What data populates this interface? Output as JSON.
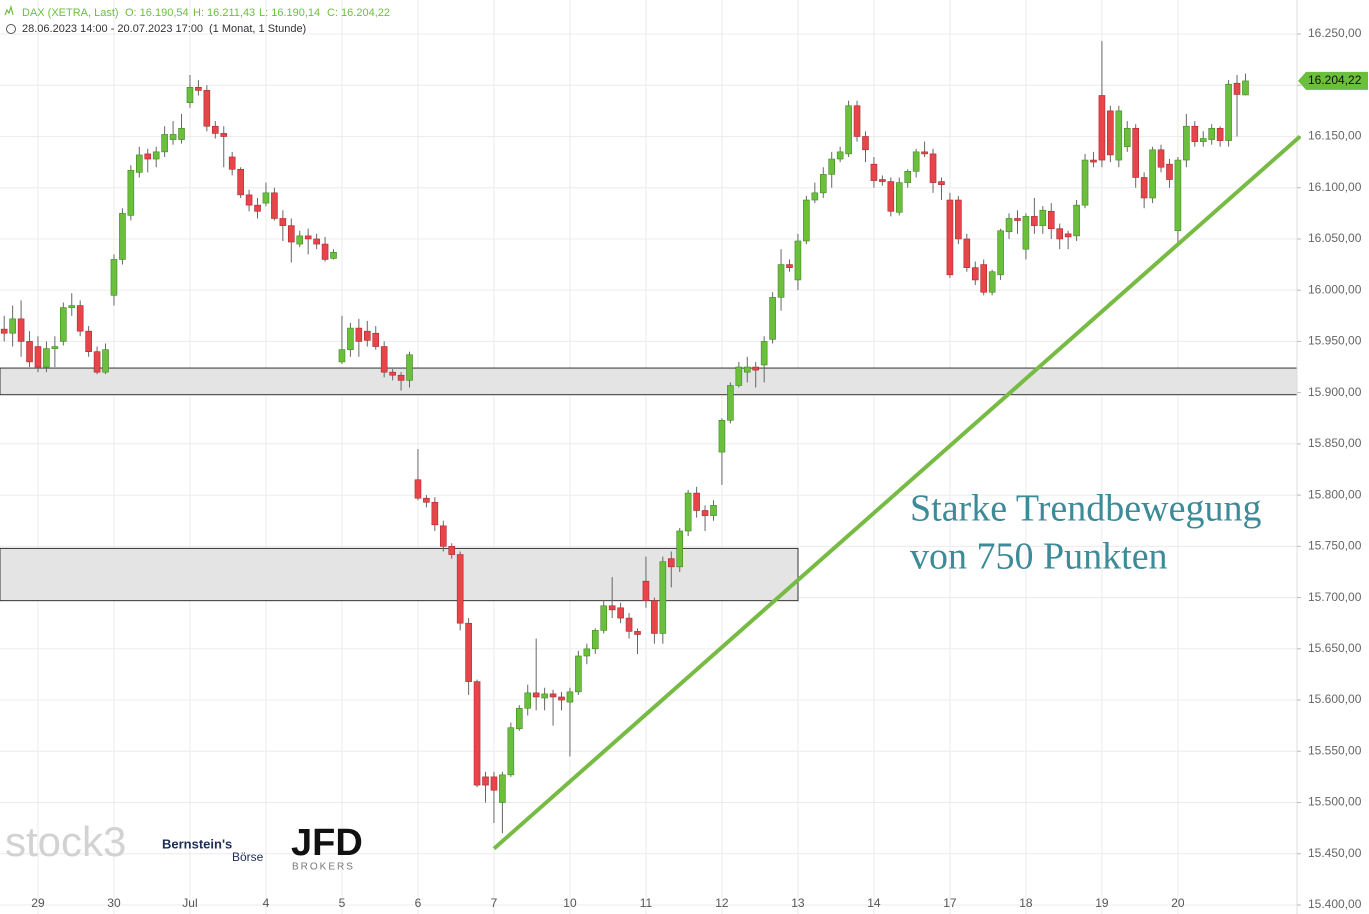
{
  "chart_data": {
    "type": "candlestick",
    "title": "DAX (XETRA, Last)",
    "quote": [
      "O: 16.190,54",
      "H: 16.211,43",
      "L: 16.190,14",
      "C: 16.204,22"
    ],
    "subtitle": "28.06.2023 14:00 - 20.07.2023 17:00",
    "period": "(1 Monat, 1 Stunde)",
    "annotation": [
      "Starke Trendbewegung",
      "von 750 Punkten"
    ],
    "logos": [
      "stock3",
      "Bernstein's",
      "Börse",
      "JFD",
      "BROKERS"
    ],
    "categories": [
      null,
      null,
      null,
      null,
      "29",
      null,
      null,
      null,
      null,
      null,
      null,
      null,
      null,
      "30",
      null,
      null,
      null,
      null,
      null,
      null,
      null,
      null,
      "Jul",
      null,
      null,
      null,
      null,
      null,
      null,
      null,
      null,
      "4",
      null,
      null,
      null,
      null,
      null,
      null,
      null,
      null,
      "5",
      null,
      null,
      null,
      null,
      null,
      null,
      null,
      null,
      "6",
      null,
      null,
      null,
      null,
      null,
      null,
      null,
      null,
      "7",
      null,
      null,
      null,
      null,
      null,
      null,
      null,
      null,
      "10",
      null,
      null,
      null,
      null,
      null,
      null,
      null,
      null,
      "11",
      null,
      null,
      null,
      null,
      null,
      null,
      null,
      null,
      "12",
      null,
      null,
      null,
      null,
      null,
      null,
      null,
      null,
      "13",
      null,
      null,
      null,
      null,
      null,
      null,
      null,
      null,
      "14",
      null,
      null,
      null,
      null,
      null,
      null,
      null,
      null,
      "17",
      null,
      null,
      null,
      null,
      null,
      null,
      null,
      null,
      "18",
      null,
      null,
      null,
      null,
      null,
      null,
      null,
      null,
      "19",
      null,
      null,
      null,
      null,
      null,
      null,
      null,
      null,
      "20",
      null,
      null,
      null,
      null,
      null,
      null,
      null,
      null
    ],
    "open": [
      15962,
      15958,
      15972,
      15950,
      15945,
      15925,
      15943,
      15950,
      15983,
      15985,
      15960,
      15940,
      15920,
      15995,
      16030,
      16073,
      16115,
      16133,
      16128,
      16135,
      16147,
      16147,
      16183,
      16198,
      16195,
      16160,
      16153,
      16130,
      16118,
      16093,
      16083,
      16085,
      16095,
      16070,
      16063,
      16045,
      16053,
      16050,
      16045,
      16031,
      15930,
      15942,
      15963,
      15960,
      15958,
      15945,
      15920,
      15917,
      15912,
      15815,
      15797,
      15793,
      15770,
      15750,
      15742,
      15675,
      15618,
      15525,
      15525,
      15500,
      15527,
      15572,
      15592,
      15607,
      15602,
      15606,
      15603,
      15598,
      15608,
      15643,
      15650,
      15668,
      15692,
      15690,
      15680,
      15667,
      15716,
      15697,
      15665,
      15738,
      15730,
      15765,
      15802,
      15785,
      15780,
      15842,
      15873,
      15907,
      15920,
      15925,
      15927,
      15952,
      15993,
      16025,
      16010,
      16048,
      16088,
      16095,
      16113,
      16128,
      16133,
      16180,
      16150,
      16123,
      16108,
      16106,
      16076,
      16105,
      16116,
      16135,
      16133,
      16106,
      16088,
      16088,
      16050,
      16022,
      16025,
      15998,
      16015,
      16057,
      16070,
      16040,
      16072,
      16063,
      16077,
      16060,
      16055,
      16053,
      16083,
      16127,
      16190,
      16175,
      16127,
      16140,
      16158,
      16110,
      16090,
      16137,
      16123,
      16058,
      16127,
      16160,
      16145,
      16147,
      16158,
      16146,
      16202,
      16190.54
    ],
    "high": [
      15975,
      15985,
      15990,
      15960,
      15955,
      15950,
      15955,
      15988,
      15997,
      15990,
      15965,
      15945,
      15948,
      16035,
      16080,
      16122,
      16140,
      16138,
      16140,
      16160,
      16165,
      16172,
      16210,
      16205,
      16200,
      16165,
      16160,
      16135,
      16120,
      16098,
      16090,
      16105,
      16100,
      16078,
      16070,
      16058,
      16060,
      16055,
      16052,
      16040,
      15975,
      15968,
      15972,
      15970,
      15965,
      15950,
      15923,
      15920,
      15940,
      15845,
      15800,
      15798,
      15775,
      15753,
      15745,
      15680,
      15620,
      15530,
      15530,
      15530,
      15578,
      15595,
      15615,
      15660,
      15612,
      15610,
      15608,
      15612,
      15648,
      15655,
      15670,
      15697,
      15720,
      15695,
      15685,
      15670,
      15740,
      15700,
      15740,
      15745,
      15768,
      15805,
      15808,
      15790,
      15795,
      15875,
      15910,
      15930,
      15935,
      15930,
      15955,
      15998,
      16040,
      16030,
      16055,
      16092,
      16105,
      16120,
      16135,
      16140,
      16185,
      16185,
      16155,
      16130,
      16112,
      16110,
      16110,
      16118,
      16138,
      16145,
      16138,
      16110,
      16095,
      16092,
      16055,
      16028,
      16030,
      16020,
      16060,
      16075,
      16078,
      16075,
      16090,
      16082,
      16085,
      16065,
      16058,
      16088,
      16133,
      16135,
      16243,
      16180,
      16180,
      16165,
      16162,
      16115,
      16140,
      16142,
      16128,
      16130,
      16172,
      16165,
      16155,
      16162,
      16160,
      16205,
      16210,
      16211.43
    ],
    "low": [
      15950,
      15945,
      15935,
      15925,
      15920,
      15920,
      15925,
      15946,
      15975,
      15955,
      15935,
      15918,
      15918,
      15985,
      16025,
      16068,
      16110,
      16115,
      16120,
      16130,
      16142,
      16143,
      16178,
      16190,
      16155,
      16148,
      16120,
      16112,
      16090,
      16077,
      16070,
      16082,
      16068,
      16048,
      16027,
      16042,
      16035,
      16040,
      16028,
      16030,
      15928,
      15935,
      15935,
      15945,
      15942,
      15915,
      15912,
      15902,
      15905,
      15795,
      15788,
      15765,
      15745,
      15738,
      15668,
      15605,
      15515,
      15500,
      15480,
      15470,
      15525,
      15570,
      15585,
      15590,
      15590,
      15575,
      15590,
      15545,
      15605,
      15635,
      15645,
      15665,
      15680,
      15675,
      15660,
      15645,
      15690,
      15655,
      15655,
      15710,
      15725,
      15760,
      15778,
      15765,
      15775,
      15810,
      15870,
      15905,
      15910,
      15905,
      15910,
      15948,
      15980,
      16018,
      16000,
      16045,
      16085,
      16090,
      16100,
      16125,
      16130,
      16145,
      16125,
      16100,
      16102,
      16072,
      16073,
      16100,
      16110,
      16130,
      16095,
      16088,
      16012,
      16045,
      16018,
      16005,
      15995,
      15995,
      16010,
      16050,
      16055,
      16030,
      16055,
      16055,
      16050,
      16040,
      16040,
      16048,
      16080,
      16120,
      16120,
      16125,
      16120,
      16135,
      16100,
      16080,
      16085,
      16115,
      16100,
      16045,
      16120,
      16140,
      16140,
      16142,
      16140,
      16140,
      16150,
      16190.14
    ],
    "close": [
      15958,
      15972,
      15950,
      15930,
      15925,
      15943,
      15945,
      15983,
      15985,
      15960,
      15940,
      15920,
      15942,
      16030,
      16075,
      16117,
      16132,
      16128,
      16135,
      16152,
      16152,
      16158,
      16198,
      16195,
      16160,
      16153,
      16150,
      16118,
      16093,
      16083,
      16077,
      16095,
      16070,
      16063,
      16047,
      16053,
      16050,
      16045,
      16030,
      16037,
      15942,
      15963,
      15950,
      15951,
      15945,
      15920,
      15917,
      15912,
      15937,
      15797,
      15793,
      15771,
      15750,
      15742,
      15675,
      15618,
      15517,
      15517,
      15512,
      15527,
      15573,
      15592,
      15607,
      15603,
      15606,
      15603,
      15600,
      15608,
      15643,
      15650,
      15668,
      15692,
      15688,
      15680,
      15667,
      15664,
      15697,
      15665,
      15735,
      15730,
      15765,
      15802,
      15785,
      15780,
      15790,
      15873,
      15907,
      15925,
      15925,
      15922,
      15950,
      15993,
      16025,
      16022,
      16048,
      16088,
      16095,
      16113,
      16128,
      16135,
      16180,
      16150,
      16137,
      16107,
      16106,
      16077,
      16105,
      16116,
      16135,
      16133,
      16105,
      16103,
      16015,
      16050,
      16022,
      16010,
      15998,
      16018,
      16058,
      16070,
      16068,
      16072,
      16063,
      16078,
      16060,
      16050,
      16052,
      16083,
      16127,
      16125,
      16127,
      16132,
      16175,
      16158,
      16110,
      16090,
      16137,
      16120,
      16108,
      16127,
      16160,
      16145,
      16148,
      16158,
      16146,
      16201,
      16191,
      16204.22
    ],
    "last_label": "16.204,22",
    "up_color": "#6cbf3d",
    "down_color": "#e8454a",
    "ylim": [
      15391.2,
      16283.2
    ],
    "yticks": [
      {
        "value": 15400,
        "label": "15.400,00"
      },
      {
        "value": 15450,
        "label": "15.450,00"
      },
      {
        "value": 15500,
        "label": "15.500,00"
      },
      {
        "value": 15550,
        "label": "15.550,00"
      },
      {
        "value": 15600,
        "label": "15.600,00"
      },
      {
        "value": 15650,
        "label": "15.650,00"
      },
      {
        "value": 15700,
        "label": "15.700,00"
      },
      {
        "value": 15750,
        "label": "15.750,00"
      },
      {
        "value": 15800,
        "label": "15.800,00"
      },
      {
        "value": 15850,
        "label": "15.850,00"
      },
      {
        "value": 15900,
        "label": "15.900,00"
      },
      {
        "value": 15950,
        "label": "15.950,00"
      },
      {
        "value": 16000,
        "label": "16.000,00"
      },
      {
        "value": 16050,
        "label": "16.050,00"
      },
      {
        "value": 16100,
        "label": "16.100,00"
      },
      {
        "value": 16150,
        "label": "16.150,00"
      },
      {
        "value": 16200,
        "label": "16.200,00"
      },
      {
        "value": 16250,
        "label": "16.250,00"
      }
    ],
    "zones": [
      {
        "from": 15898,
        "to": 15924
      },
      {
        "from": 15697,
        "to": 15748
      }
    ],
    "trendline": {
      "y": [
        15455,
        16150
      ],
      "color": "#77bb44"
    },
    "grid": true
  }
}
